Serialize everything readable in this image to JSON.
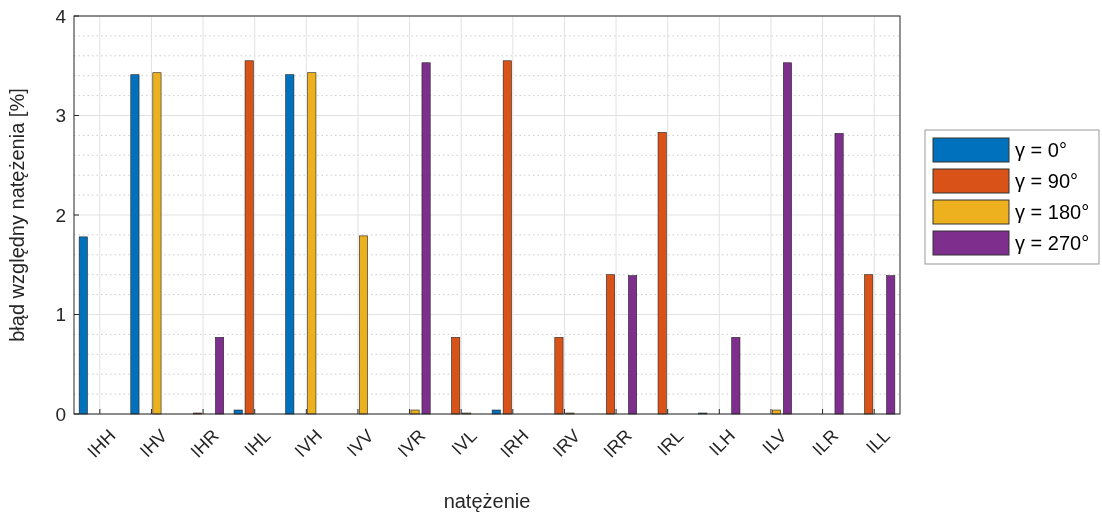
{
  "chart_data": {
    "type": "bar",
    "xlabel": "natężenie",
    "ylabel": "błąd względny natężenia [%]",
    "categories": [
      "IHH",
      "IHV",
      "IHR",
      "IHL",
      "IVH",
      "IVV",
      "IVR",
      "IVL",
      "IRH",
      "IRV",
      "IRR",
      "IRL",
      "ILH",
      "ILV",
      "ILR",
      "ILL"
    ],
    "series": [
      {
        "name": "γ = 0°",
        "color": "#0072bd",
        "values": [
          1.78,
          3.41,
          0,
          0.04,
          3.41,
          0,
          0,
          0,
          0.04,
          0,
          0,
          0,
          0.01,
          0,
          0,
          0
        ]
      },
      {
        "name": "γ = 90°",
        "color": "#d95319",
        "values": [
          0,
          0,
          0.01,
          3.55,
          0,
          0,
          0,
          0.77,
          3.55,
          0.77,
          1.4,
          2.83,
          0,
          0,
          0,
          1.4
        ]
      },
      {
        "name": "γ = 180°",
        "color": "#edb120",
        "values": [
          0,
          3.43,
          0,
          0,
          3.43,
          1.79,
          0.04,
          0.01,
          0,
          0.01,
          0,
          0,
          0,
          0.04,
          0,
          0
        ]
      },
      {
        "name": "γ = 270°",
        "color": "#7e2f8e",
        "values": [
          0,
          0,
          0.77,
          0,
          0,
          0,
          3.53,
          0,
          0,
          0,
          1.39,
          0,
          0.77,
          3.53,
          2.82,
          1.39
        ]
      }
    ],
    "ylim": [
      0,
      4
    ],
    "yticks": [
      0,
      1,
      2,
      3,
      4
    ],
    "grid": true,
    "legend": "right"
  }
}
